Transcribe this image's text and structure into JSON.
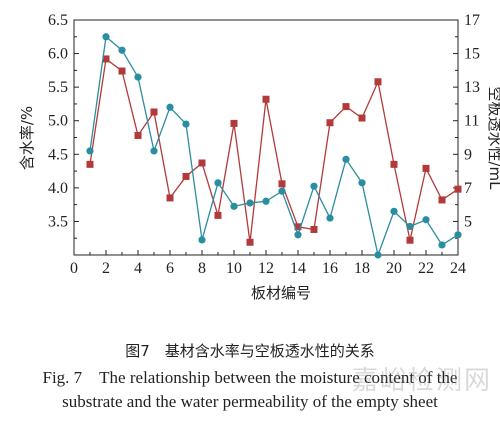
{
  "chart_data": {
    "type": "line",
    "x": [
      1,
      2,
      3,
      4,
      5,
      6,
      7,
      8,
      9,
      10,
      11,
      12,
      13,
      14,
      15,
      16,
      17,
      18,
      19,
      20,
      21,
      22,
      23,
      24
    ],
    "xlabel": "板材编号",
    "xlim": [
      0,
      24
    ],
    "xticks": [
      0,
      2,
      4,
      6,
      8,
      10,
      12,
      14,
      16,
      18,
      20,
      22,
      24
    ],
    "ylabel_left": "含水率/%",
    "ylim_left": [
      3.0,
      6.5
    ],
    "yticks_left": [
      "3.5",
      "4.0",
      "4.5",
      "5.0",
      "5.5",
      "6.0",
      "6.5"
    ],
    "ylabel_right": "空板透水性/mL",
    "ylim_right": [
      3,
      17
    ],
    "yticks_right": [
      5,
      7,
      9,
      11,
      13,
      15,
      17
    ],
    "series": [
      {
        "name": "—含水率；",
        "axis": "left",
        "marker": "square",
        "color": "#b33a3a",
        "values": [
          4.35,
          5.92,
          5.74,
          4.78,
          5.13,
          3.85,
          4.17,
          4.37,
          3.59,
          4.96,
          3.19,
          5.32,
          4.06,
          3.42,
          3.38,
          4.97,
          5.21,
          5.04,
          5.58,
          4.35,
          3.22,
          4.29,
          3.82,
          3.98
        ]
      },
      {
        "name": "—空板透水性",
        "axis": "right",
        "marker": "circle",
        "color": "#2a8ea0",
        "values": [
          9.2,
          16.0,
          15.2,
          13.6,
          9.2,
          11.8,
          10.8,
          3.9,
          7.3,
          5.9,
          6.1,
          6.2,
          6.8,
          4.2,
          7.1,
          5.2,
          8.7,
          7.3,
          3.0,
          5.6,
          4.7,
          5.1,
          3.6,
          4.2
        ]
      }
    ],
    "legend_position": "bottom-center"
  },
  "caption_zh": "图7　基材含水率与空板透水性的关系",
  "caption_en_line1": "Fig. 7　The relationship between the moisture content of the",
  "caption_en_line2": "substrate and the water permeability of the empty sheet",
  "watermark": "嘉峪检测网"
}
